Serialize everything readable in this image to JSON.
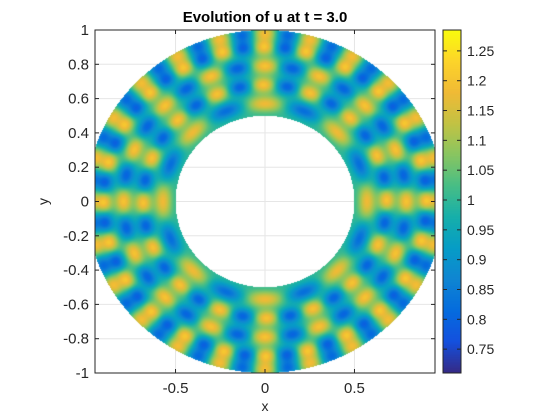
{
  "chart_data": {
    "type": "heatmap",
    "title": "Evolution of u at t = 3.0",
    "xlabel": "x",
    "ylabel": "y",
    "xlim": [
      -0.95,
      0.95
    ],
    "ylim": [
      -1,
      1
    ],
    "x_ticks": [
      -0.5,
      0,
      0.5
    ],
    "x_tick_labels": [
      "-0.5",
      "0",
      "0.5"
    ],
    "y_ticks": [
      -1,
      -0.8,
      -0.6,
      -0.4,
      -0.2,
      0,
      0.2,
      0.4,
      0.6,
      0.8,
      1
    ],
    "y_tick_labels": [
      "-1",
      "-0.8",
      "-0.6",
      "-0.4",
      "-0.2",
      "0",
      "0.2",
      "0.4",
      "0.6",
      "0.8",
      "1"
    ],
    "grid": true,
    "domain": {
      "shape": "annulus",
      "inner_radius": 0.5,
      "outer_radius": 1.0
    },
    "field": {
      "base": 1.0,
      "ring_modes": [
        {
          "r": 0.57,
          "angular_mode": 8,
          "phase_deg": 0,
          "amplitude": 0.18
        },
        {
          "r": 0.68,
          "angular_mode": 16,
          "phase_deg": 11.25,
          "amplitude": 0.2
        },
        {
          "r": 0.79,
          "angular_mode": 16,
          "phase_deg": 0,
          "amplitude": 0.2
        },
        {
          "r": 0.9,
          "angular_mode": 24,
          "phase_deg": 7.5,
          "amplitude": 0.2
        },
        {
          "r": 0.98,
          "angular_mode": 24,
          "phase_deg": 0,
          "amplitude": 0.18
        }
      ]
    },
    "colorbar": {
      "colormap": "parula",
      "range": [
        0.71,
        1.285
      ],
      "ticks": [
        0.75,
        0.8,
        0.85,
        0.9,
        0.95,
        1,
        1.05,
        1.1,
        1.15,
        1.2,
        1.25
      ],
      "tick_labels": [
        "0.75",
        "0.8",
        "0.85",
        "0.9",
        "0.95",
        "1",
        "1.05",
        "1.1",
        "1.15",
        "1.2",
        "1.25"
      ],
      "location": "right"
    },
    "colors": {
      "axis": "#262626",
      "grid": "#e6e6e6",
      "hole": "#ffffff"
    }
  }
}
